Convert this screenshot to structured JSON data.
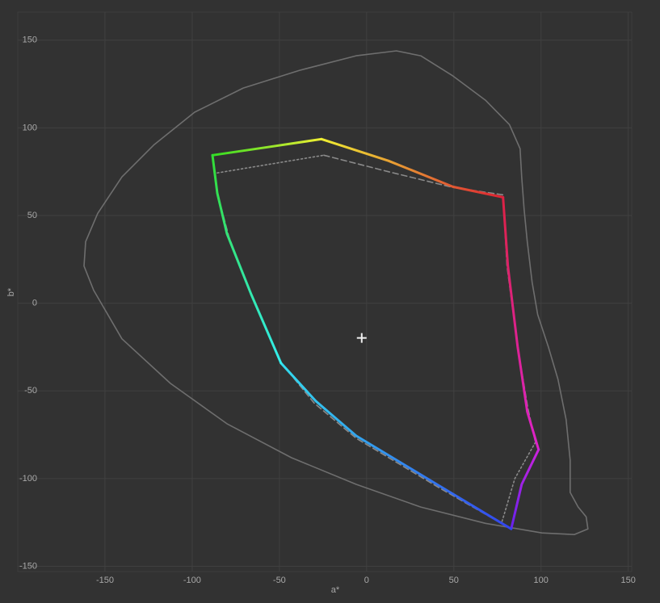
{
  "chart_data": {
    "type": "line",
    "x_label": "a*",
    "y_label": "b*",
    "xlim": [
      -200,
      152
    ],
    "ylim": [
      -153,
      166
    ],
    "xticks": [
      -150,
      -100,
      -50,
      0,
      50,
      100,
      150
    ],
    "yticks": [
      -150,
      -100,
      -50,
      0,
      50,
      100,
      150
    ],
    "grid": true,
    "series": [
      {
        "style": "solid",
        "color": "#6e6e6e",
        "x": [
          -162.0,
          -161.1,
          -154.2,
          -140.3,
          -121.8,
          -98.6,
          -70.8,
          -38.4,
          -6.0,
          17.1,
          31.0,
          49.5,
          68.1,
          81.9,
          88.0,
          88.9,
          90.3,
          92.1,
          94.9,
          98.1,
          104.2,
          109.7,
          114.4,
          116.7,
          116.7,
          121.3,
          125.9,
          126.9,
          119.0,
          100.5,
          68.1,
          31.0,
          -6.0,
          -43.1,
          -80.1,
          -112.5,
          -140.3,
          -156.5,
          -162.0
        ],
        "y": [
          21.2,
          35.1,
          51.2,
          72.0,
          90.4,
          108.9,
          122.7,
          132.8,
          141.1,
          143.9,
          141.1,
          129.6,
          115.8,
          101.9,
          88.1,
          72.0,
          53.5,
          35.1,
          12.0,
          -6.5,
          -24.9,
          -43.4,
          -66.4,
          -89.5,
          -107.9,
          -116.2,
          -121.8,
          -128.7,
          -131.9,
          -131.0,
          -125.5,
          -116.2,
          -103.3,
          -88.1,
          -68.7,
          -45.7,
          -20.3,
          7.4,
          21.2
        ]
      },
      {
        "style": "dashed",
        "color": "#8a8a8a",
        "x": [
          -88.4,
          -85.6,
          -79.0,
          -70.8,
          -50.0,
          -30.0,
          -6.0,
          40.3,
          77.3
        ],
        "y": [
          84.4,
          62.7,
          38.0,
          16.6,
          -32.7,
          -57.0,
          -77.0,
          -104.5,
          -125.5
        ]
      },
      {
        "style": "dashed",
        "color": "#8a8a8a",
        "x": [
          -24.5,
          12.5,
          49.5,
          78.2,
          80.5,
          86.6,
          92.5,
          96.8
        ],
        "y": [
          84.4,
          75.0,
          66.0,
          61.8,
          21.2,
          -24.9,
          -60.0,
          -79.3
        ]
      },
      {
        "style": "dotted",
        "color": "#8a8a8a",
        "x": [
          -85.6,
          -24.5
        ],
        "y": [
          74.3,
          84.4
        ]
      },
      {
        "style": "dotted",
        "color": "#8a8a8a",
        "x": [
          96.8,
          85.0,
          79.0,
          77.3
        ],
        "y": [
          -79.3,
          -100.0,
          -120.0,
          -125.5
        ]
      },
      {
        "style": "solid",
        "colors": [
          "#33dd22",
          "#eeee33"
        ],
        "x": [
          -88.4,
          -56.9,
          -25.9
        ],
        "y": [
          84.4,
          89.0,
          93.6
        ]
      },
      {
        "style": "solid",
        "colors": [
          "#eeee33",
          "#dd2233"
        ],
        "x": [
          -25.9,
          12.5,
          49.5,
          78.2
        ],
        "y": [
          93.6,
          81.2,
          66.4,
          60.4
        ]
      },
      {
        "style": "solid",
        "colors": [
          "#dd2244",
          "#dd22cc"
        ],
        "x": [
          78.2,
          81.0,
          86.6,
          92.1,
          98.6
        ],
        "y": [
          60.4,
          21.2,
          -24.9,
          -61.8,
          -83.5
        ]
      },
      {
        "style": "solid",
        "colors": [
          "#cc22dd",
          "#6622ee"
        ],
        "x": [
          98.6,
          88.9,
          82.9
        ],
        "y": [
          -83.5,
          -103.3,
          -128.7
        ]
      },
      {
        "style": "solid",
        "colors": [
          "#3344ee",
          "#33ddee"
        ],
        "x": [
          82.9,
          40.3,
          -6.0,
          -29.2,
          -49.1
        ],
        "y": [
          -128.7,
          -103.3,
          -75.6,
          -55.8,
          -34.1
        ]
      },
      {
        "style": "solid",
        "colors": [
          "#33eeee",
          "#33dd33"
        ],
        "x": [
          -49.1,
          -66.2,
          -80.1,
          -85.6,
          -88.4
        ],
        "y": [
          -34.1,
          5.1,
          39.7,
          62.7,
          84.4
        ]
      }
    ],
    "marker": {
      "x": -2.8,
      "y": -19.8
    }
  }
}
